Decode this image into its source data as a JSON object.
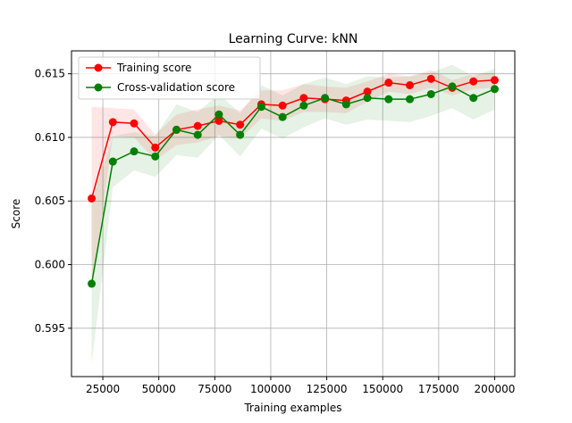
{
  "chart_data": {
    "type": "line",
    "title": "Learning Curve: kNN",
    "xlabel": "Training examples",
    "ylabel": "Score",
    "xlim": [
      11000,
      209000
    ],
    "ylim": [
      0.5912,
      0.6168
    ],
    "xticks": [
      25000,
      50000,
      75000,
      100000,
      125000,
      150000,
      175000,
      200000
    ],
    "xtick_labels": [
      "25000",
      "50000",
      "75000",
      "100000",
      "125000",
      "150000",
      "175000",
      "200000"
    ],
    "yticks": [
      0.595,
      0.6,
      0.605,
      0.61,
      0.615
    ],
    "ytick_labels": [
      "0.595",
      "0.600",
      "0.605",
      "0.610",
      "0.615"
    ],
    "grid": true,
    "legend_position": "upper-left",
    "x": [
      20000,
      29474,
      38947,
      48421,
      57895,
      67368,
      76842,
      86316,
      95789,
      105263,
      114737,
      124211,
      133684,
      143158,
      152632,
      162105,
      171579,
      181053,
      190526,
      200000
    ],
    "series": [
      {
        "name": "Training score",
        "color": "#ff0000",
        "values": [
          0.6052,
          0.6112,
          0.6111,
          0.6092,
          0.6106,
          0.6109,
          0.6113,
          0.611,
          0.6126,
          0.6125,
          0.6131,
          0.613,
          0.6129,
          0.6136,
          0.6143,
          0.6141,
          0.6146,
          0.6139,
          0.6144,
          0.6145
        ],
        "std": [
          0.0072,
          0.0011,
          0.0011,
          0.001,
          0.0012,
          0.0013,
          0.0012,
          0.0011,
          0.0011,
          0.0012,
          0.0011,
          0.001,
          0.001,
          0.0008,
          0.0007,
          0.0007,
          0.0007,
          0.0006,
          0.0006,
          0.0006
        ]
      },
      {
        "name": "Cross-validation score",
        "color": "#008000",
        "values": [
          0.5985,
          0.6081,
          0.6089,
          0.6085,
          0.6106,
          0.6102,
          0.6118,
          0.6102,
          0.6124,
          0.6116,
          0.6125,
          0.6131,
          0.6126,
          0.6131,
          0.613,
          0.613,
          0.6134,
          0.614,
          0.6131,
          0.6138
        ],
        "std": [
          0.0063,
          0.002,
          0.0015,
          0.0016,
          0.002,
          0.0018,
          0.0016,
          0.0017,
          0.0017,
          0.0017,
          0.0017,
          0.0016,
          0.0016,
          0.0017,
          0.0017,
          0.0018,
          0.0017,
          0.0017,
          0.0017,
          0.0016
        ]
      }
    ]
  }
}
